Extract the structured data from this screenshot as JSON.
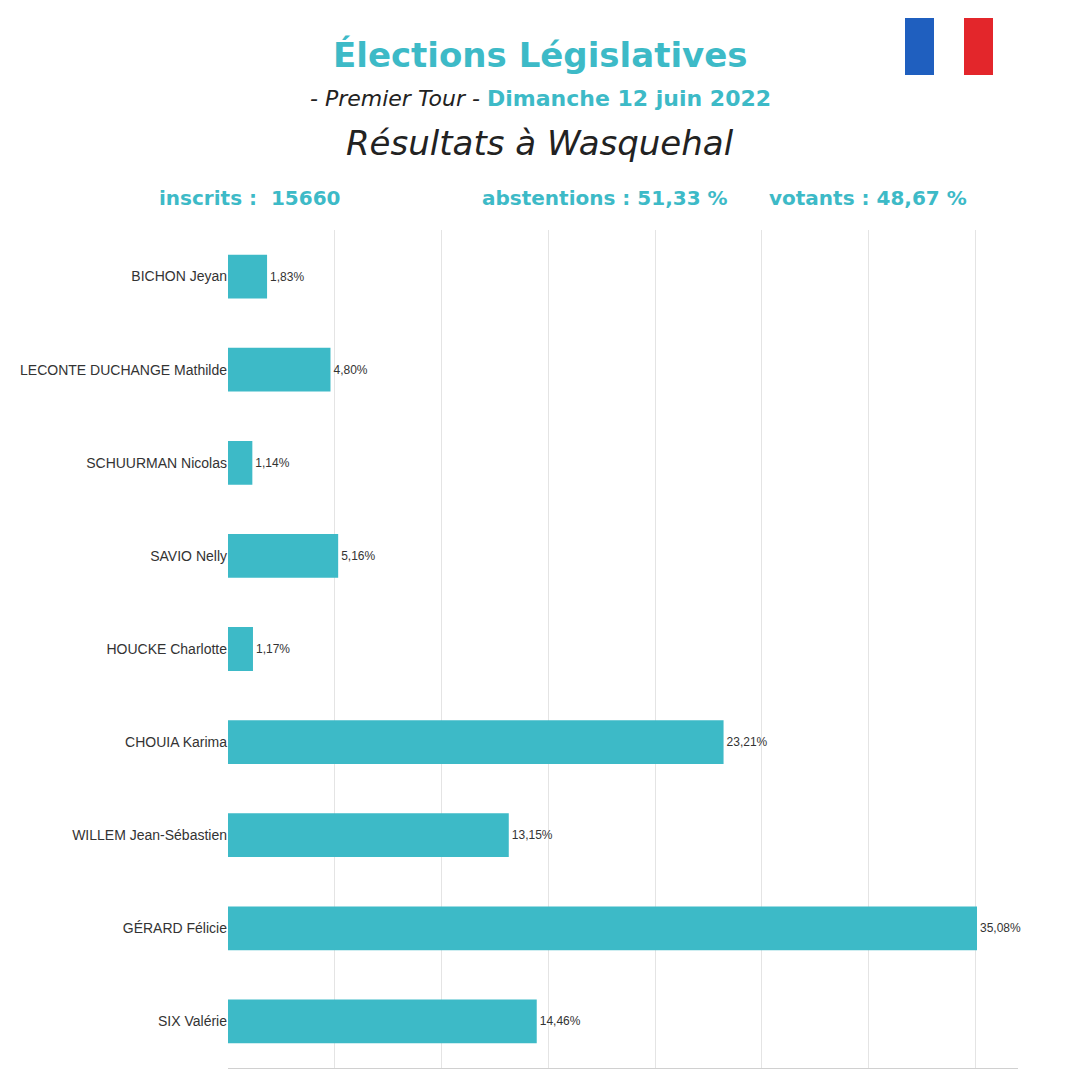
{
  "chart_data": {
    "type": "bar",
    "orientation": "horizontal",
    "title": "Élections Législatives",
    "subtitle": [
      "- Premier Tour -",
      "Dimanche 12 juin 2022"
    ],
    "annotations": [
      "Résultats à Wasquehal",
      "inscrits :  15660",
      "abstentions : 51,33 %",
      "votants : 48,67 %"
    ],
    "categories": [
      "BICHON Jeyan",
      "LECONTE DUCHANGE Mathilde",
      "SCHUURMAN Nicolas",
      "SAVIO Nelly",
      "HOUCKE Charlotte",
      "CHOUIA Karima",
      "WILLEM Jean-Sébastien",
      "GÉRARD Félicie",
      "SIX Valérie"
    ],
    "values": [
      1.83,
      4.8,
      1.14,
      5.16,
      1.17,
      23.21,
      13.15,
      35.08,
      14.46
    ],
    "value_labels": [
      "1,83%",
      "4,80%",
      "1,14%",
      "5,16%",
      "1,17%",
      "23,21%",
      "13,15%",
      "35,08%",
      "14,46%"
    ],
    "color": "#3dbac7",
    "xlim": [
      0,
      37
    ],
    "xticks": [
      0,
      5,
      10,
      15,
      20,
      25,
      30,
      35
    ],
    "grid": true,
    "data_labels": true,
    "tick_labels": "y"
  }
}
